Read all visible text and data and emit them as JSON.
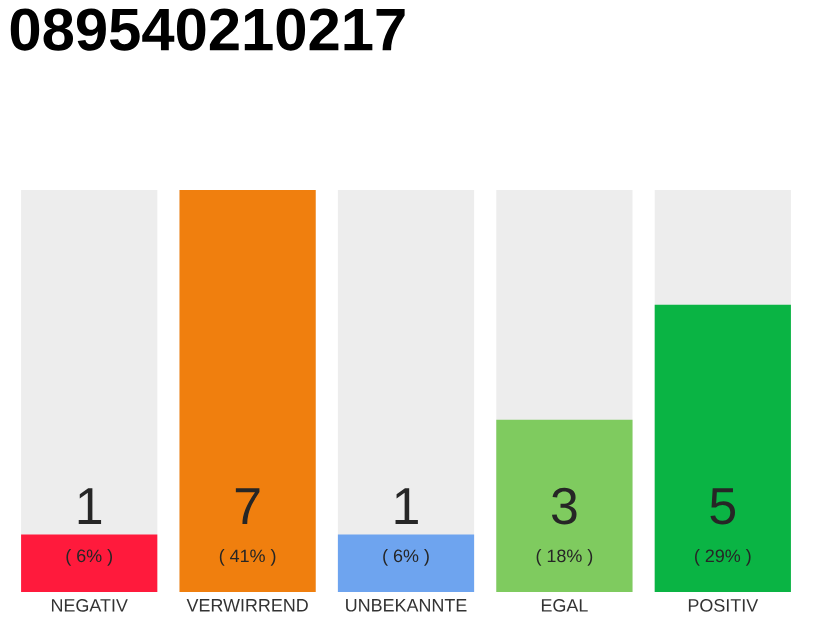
{
  "chart_data": {
    "type": "bar",
    "title": "089540210217",
    "categories": [
      "NEGATIV",
      "VERWIRREND",
      "UNBEKANNTE",
      "EGAL",
      "POSITIV"
    ],
    "values": [
      1,
      7,
      1,
      3,
      5
    ],
    "colors": [
      "#ff1a3c",
      "#f07f0e",
      "#6ea4ef",
      "#7fcb5f",
      "#0ab444"
    ],
    "ylim": [
      0,
      7
    ],
    "tick_labels": "x",
    "data_labels": true,
    "annotations": [
      "( 6% )",
      "( 41% )",
      "( 6% )",
      "( 18% )",
      "( 29% )"
    ]
  }
}
